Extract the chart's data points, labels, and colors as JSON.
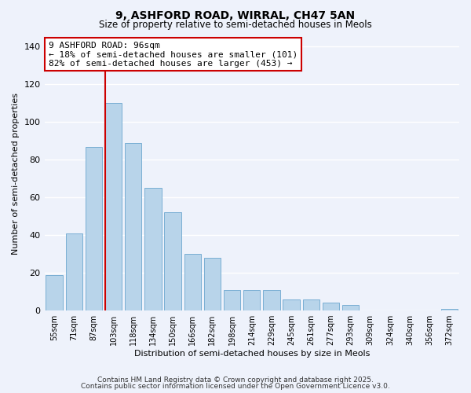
{
  "title": "9, ASHFORD ROAD, WIRRAL, CH47 5AN",
  "subtitle": "Size of property relative to semi-detached houses in Meols",
  "xlabel": "Distribution of semi-detached houses by size in Meols",
  "ylabel": "Number of semi-detached properties",
  "categories": [
    "55sqm",
    "71sqm",
    "87sqm",
    "103sqm",
    "118sqm",
    "134sqm",
    "150sqm",
    "166sqm",
    "182sqm",
    "198sqm",
    "214sqm",
    "229sqm",
    "245sqm",
    "261sqm",
    "277sqm",
    "293sqm",
    "309sqm",
    "324sqm",
    "340sqm",
    "356sqm",
    "372sqm"
  ],
  "values": [
    19,
    41,
    87,
    110,
    89,
    65,
    52,
    30,
    28,
    11,
    11,
    11,
    6,
    6,
    4,
    3,
    0,
    0,
    0,
    0,
    1
  ],
  "bar_color": "#b8d4ea",
  "bar_edge_color": "#7aafd4",
  "vline_color": "#cc0000",
  "annotation_line1": "9 ASHFORD ROAD: 96sqm",
  "annotation_line2": "← 18% of semi-detached houses are smaller (101)",
  "annotation_line3": "82% of semi-detached houses are larger (453) →",
  "annotation_box_color": "#ffffff",
  "annotation_box_edge_color": "#cc0000",
  "ylim": [
    0,
    145
  ],
  "background_color": "#eef2fb",
  "grid_color": "#ffffff",
  "footer_line1": "Contains HM Land Registry data © Crown copyright and database right 2025.",
  "footer_line2": "Contains public sector information licensed under the Open Government Licence v3.0."
}
